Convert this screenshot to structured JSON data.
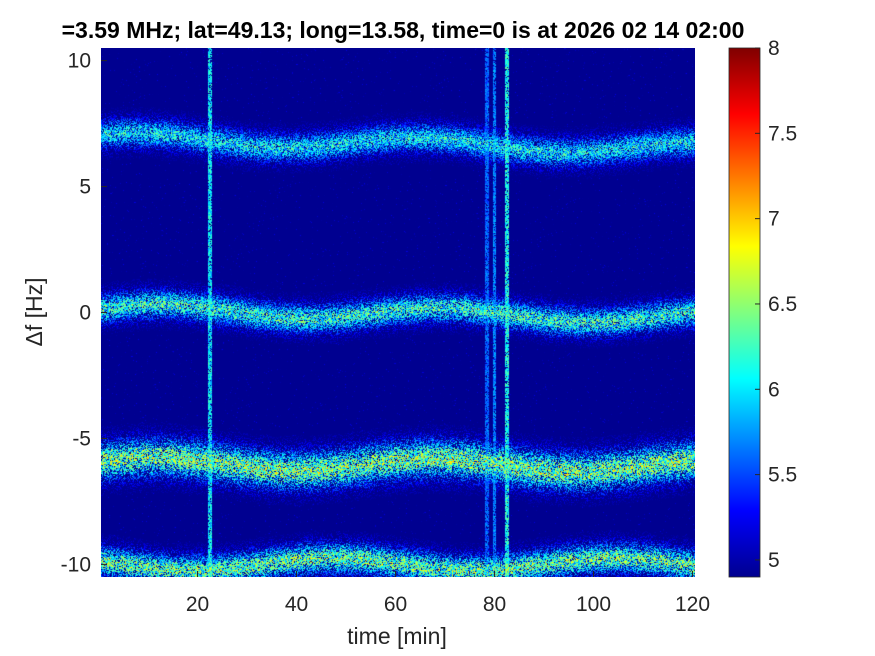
{
  "chart_data": {
    "type": "heatmap",
    "title": "=3.59 MHz;  lat=49.13; long=13.58, time=0 is at 2026 02 14 02:00",
    "xlabel": "time [min]",
    "ylabel": "Δf [Hz]",
    "xlim": [
      0.5,
      120.5
    ],
    "ylim": [
      -10.5,
      10.5
    ],
    "xticks": [
      20,
      40,
      60,
      80,
      100,
      120
    ],
    "yticks": [
      -10,
      -5,
      0,
      5,
      10
    ],
    "colorbar": {
      "clim": [
        4.9,
        8.0
      ],
      "ticks": [
        5,
        5.5,
        6,
        6.5,
        7,
        7.5,
        8
      ],
      "colormap": "jet"
    },
    "background_level": 4.95,
    "bands": [
      {
        "center_start": 6.9,
        "center_end": 6.5,
        "half_width": 0.75,
        "peak_level": 6.4
      },
      {
        "center_start": 0.1,
        "center_end": -0.2,
        "half_width": 0.75,
        "peak_level": 6.6
      },
      {
        "center_start": -6.0,
        "center_end": -6.1,
        "half_width": 1.0,
        "peak_level": 6.9
      },
      {
        "center_start": -10.0,
        "center_end": -10.0,
        "half_width": 0.8,
        "peak_level": 6.8
      }
    ],
    "interference_lines": [
      {
        "time": 22.5,
        "level": 6.2
      },
      {
        "time": 78.5,
        "level": 5.7
      },
      {
        "time": 80.0,
        "level": 5.8
      },
      {
        "time": 82.5,
        "level": 6.3
      }
    ]
  }
}
